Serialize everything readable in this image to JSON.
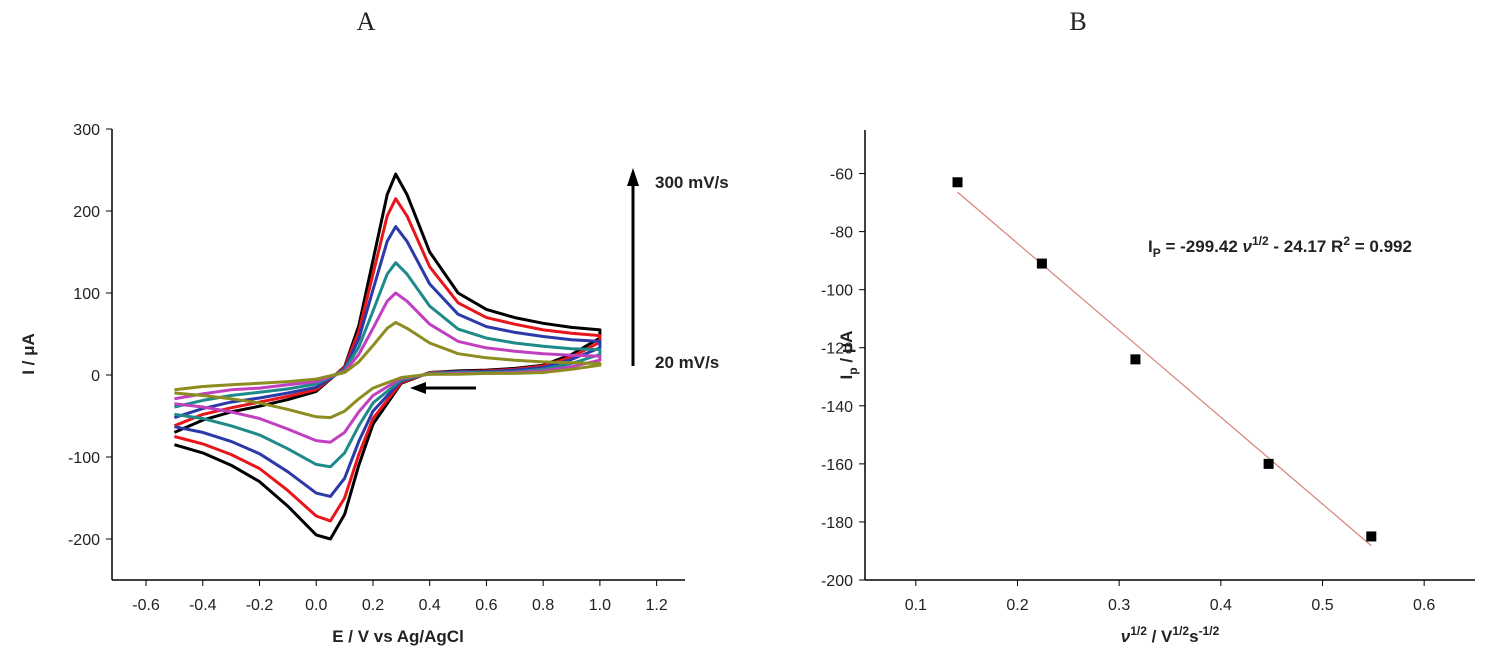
{
  "chart_data": [
    {
      "type": "line",
      "title": "A",
      "xlabel": "E / V vs Ag/AgCl",
      "ylabel": "I / μA",
      "x": [
        -0.5,
        -0.4,
        -0.3,
        -0.2,
        -0.1,
        0,
        0.1,
        0.15,
        0.2,
        0.25,
        0.28,
        0.32,
        0.4,
        0.5,
        0.6,
        0.7,
        0.8,
        0.9,
        1.0,
        1.0,
        0.9,
        0.8,
        0.7,
        0.6,
        0.5,
        0.4,
        0.3,
        0.2,
        0.15,
        0.1,
        0.05,
        0.0,
        -0.1,
        -0.2,
        -0.3,
        -0.4,
        -0.5
      ],
      "series": [
        {
          "color": "#000000",
          "values": [
            -70,
            -55,
            -45,
            -38,
            -30,
            -20,
            10,
            60,
            140,
            220,
            245,
            220,
            150,
            100,
            80,
            70,
            63,
            58,
            55,
            45,
            25,
            12,
            8,
            6,
            5,
            3,
            -10,
            -60,
            -110,
            -170,
            -200,
            -195,
            -160,
            -130,
            -110,
            -95,
            -85
          ]
        },
        {
          "color": "#e8151b",
          "values": [
            -62,
            -48,
            -40,
            -33,
            -26,
            -18,
            9,
            53,
            123,
            194,
            215,
            194,
            132,
            88,
            70,
            62,
            55,
            51,
            48,
            40,
            22,
            11,
            7,
            5,
            4,
            3,
            -9,
            -53,
            -97,
            -150,
            -178,
            -172,
            -141,
            -114,
            -97,
            -84,
            -75
          ]
        },
        {
          "color": "#2b3aa8",
          "values": [
            -52,
            -41,
            -33,
            -28,
            -22,
            -15,
            7,
            44,
            104,
            163,
            181,
            163,
            111,
            74,
            59,
            52,
            47,
            43,
            41,
            33,
            19,
            9,
            6,
            4,
            4,
            2,
            -7,
            -44,
            -81,
            -126,
            -148,
            -144,
            -118,
            -96,
            -81,
            -70,
            -63
          ]
        },
        {
          "color": "#1f8a8a",
          "values": [
            -39,
            -31,
            -25,
            -21,
            -17,
            -11,
            6,
            34,
            78,
            123,
            137,
            123,
            84,
            56,
            45,
            39,
            35,
            32,
            31,
            25,
            14,
            7,
            4,
            3,
            3,
            2,
            -6,
            -34,
            -62,
            -95,
            -112,
            -109,
            -90,
            -73,
            -62,
            -53,
            -48
          ]
        },
        {
          "color": "#c040c0",
          "values": [
            -29,
            -23,
            -18,
            -16,
            -12,
            -8,
            4,
            25,
            57,
            90,
            100,
            90,
            62,
            41,
            33,
            29,
            26,
            24,
            23,
            18,
            10,
            5,
            3,
            2,
            2,
            1,
            -4,
            -25,
            -45,
            -70,
            -82,
            -80,
            -66,
            -53,
            -45,
            -39,
            -35
          ]
        },
        {
          "color": "#8c8c20",
          "values": [
            -18,
            -14,
            -12,
            -10,
            -8,
            -5,
            3,
            16,
            36,
            57,
            64,
            57,
            39,
            26,
            21,
            18,
            16,
            15,
            14,
            12,
            7,
            3,
            2,
            2,
            1,
            1,
            -3,
            -16,
            -29,
            -44,
            -52,
            -51,
            -42,
            -34,
            -29,
            -25,
            -22
          ]
        }
      ],
      "xlim": [
        -0.72,
        1.3
      ],
      "ylim": [
        -250,
        300
      ],
      "xticks": [
        -0.6,
        -0.4,
        -0.2,
        {
          "value": 0,
          "label": "0.0"
        },
        0.2,
        0.4,
        0.6,
        0.8,
        {
          "value": 1,
          "label": "1.0"
        },
        1.2
      ],
      "yticks": [
        300,
        200,
        100,
        0,
        -100,
        -200
      ],
      "annotations": [
        "300 mV/s",
        "20 mV/s"
      ]
    },
    {
      "type": "scatter",
      "title": "B",
      "xlabel": [
        {
          "text": "ν",
          "pos": "italic"
        },
        {
          "text": "1/2",
          "pos": "sup"
        },
        {
          "text": " / V"
        },
        {
          "text": "1/2",
          "pos": "sup"
        },
        {
          "text": "s"
        },
        {
          "text": "-1/2",
          "pos": "sup"
        }
      ],
      "ylabel": [
        {
          "text": "I"
        },
        {
          "text": "p",
          "pos": "sub"
        },
        {
          "text": " / μA"
        }
      ],
      "x": [
        0.141,
        0.224,
        0.316,
        0.447,
        0.548
      ],
      "values": [
        -63,
        -91,
        -124,
        -160,
        -185
      ],
      "color": "#000000",
      "fit": {
        "x": [
          0.141,
          0.548
        ],
        "values": [
          -66.4,
          -188.2
        ],
        "color": "#d9827a"
      },
      "equation": [
        {
          "text": "I"
        },
        {
          "text": "P",
          "pos": "sub"
        },
        {
          "text": " = -299.42 "
        },
        {
          "text": "ν",
          "pos": "italic"
        },
        {
          "text": "1/2",
          "pos": "sup"
        },
        {
          "text": " - 24.17   R"
        },
        {
          "text": "2",
          "pos": "sup"
        },
        {
          "text": " = 0.992"
        }
      ],
      "xlim": [
        0.05,
        0.65
      ],
      "ylim": [
        -200,
        -45
      ],
      "xticks": [
        0.1,
        0.2,
        0.3,
        0.4,
        0.5,
        0.6
      ],
      "yticks": [
        -60,
        -80,
        -100,
        -120,
        -140,
        -160,
        -180,
        -200
      ]
    }
  ]
}
